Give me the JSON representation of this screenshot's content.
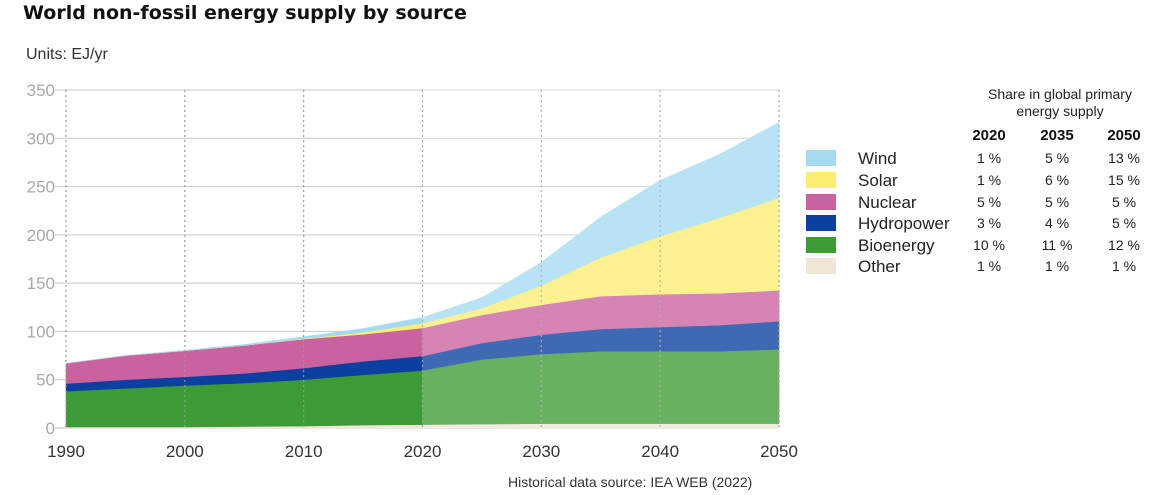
{
  "chart_data": {
    "type": "area",
    "stacked": true,
    "title": "World non-fossil energy supply by source",
    "units_label": "Units: EJ/yr",
    "source": "Historical data source: IEA WEB (2022)",
    "ylim": [
      0,
      350
    ],
    "xlim": [
      1990,
      2050
    ],
    "yticks": [
      "0",
      "50",
      "100",
      "150",
      "200",
      "250",
      "300",
      "350"
    ],
    "xticks": [
      "1990",
      "2000",
      "2010",
      "2020",
      "2030",
      "2040",
      "2050"
    ],
    "grid": "horizontal solid, vertical dotted at decades",
    "historical_until": 2020,
    "x": [
      1990,
      1995,
      2000,
      2005,
      2010,
      2015,
      2020,
      2025,
      2030,
      2035,
      2040,
      2045,
      2050
    ],
    "series": [
      {
        "name": "Other",
        "color": "#efe6d6",
        "values": [
          1,
          1,
          1,
          1.5,
          2,
          3,
          3.5,
          4,
          4.5,
          4.5,
          4.5,
          4.5,
          4.5
        ]
      },
      {
        "name": "Bioenergy",
        "color": "#3d9b35",
        "values": [
          37,
          40,
          43,
          45,
          48,
          52,
          56,
          67,
          72,
          75,
          75,
          75,
          77
        ]
      },
      {
        "name": "Hydropower",
        "color": "#0b3fa0",
        "values": [
          8,
          9,
          9,
          10,
          12,
          14,
          15,
          17,
          20,
          23,
          25,
          27,
          29
        ]
      },
      {
        "name": "Nuclear",
        "color": "#c9629e",
        "values": [
          21,
          25,
          27,
          29,
          30,
          28,
          29,
          29,
          31,
          34,
          34,
          33,
          32
        ]
      },
      {
        "name": "Solar",
        "color": "#fbee72",
        "values": [
          0,
          0,
          0,
          0,
          0.5,
          2,
          5,
          7,
          20,
          40,
          60,
          78,
          96
        ]
      },
      {
        "name": "Wind",
        "color": "#a5dbf1",
        "values": [
          0,
          0,
          0.5,
          1,
          2,
          4,
          6,
          11,
          24,
          42,
          58,
          66,
          78
        ]
      }
    ]
  },
  "share_table": {
    "header": "Share in global primary energy supply",
    "years": [
      "2020",
      "2035",
      "2050"
    ],
    "rows": [
      {
        "label": "Wind",
        "color": "#a5dbf1",
        "values": [
          "1 %",
          "5 %",
          "13 %"
        ]
      },
      {
        "label": "Solar",
        "color": "#fbee72",
        "values": [
          "1 %",
          "6 %",
          "15 %"
        ]
      },
      {
        "label": "Nuclear",
        "color": "#c9629e",
        "values": [
          "5 %",
          "5 %",
          "5 %"
        ]
      },
      {
        "label": "Hydropower",
        "color": "#0b3fa0",
        "values": [
          "3 %",
          "4 %",
          "5 %"
        ]
      },
      {
        "label": "Bioenergy",
        "color": "#3d9b35",
        "values": [
          "10 %",
          "11 %",
          "12 %"
        ]
      },
      {
        "label": "Other",
        "color": "#efe6d6",
        "values": [
          "1 %",
          "1 %",
          "1 %"
        ]
      }
    ]
  }
}
